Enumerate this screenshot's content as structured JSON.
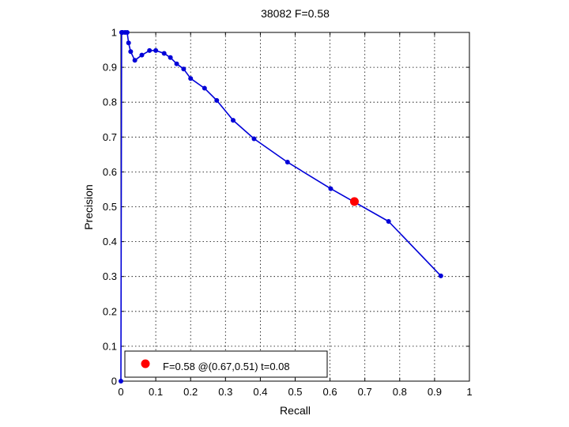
{
  "chart_data": {
    "type": "line",
    "title": "38082 F=0.58",
    "xlabel": "Recall",
    "ylabel": "Precision",
    "xlim": [
      0,
      1
    ],
    "ylim": [
      0,
      1
    ],
    "xticks": [
      "0",
      "0.1",
      "0.2",
      "0.3",
      "0.4",
      "0.5",
      "0.6",
      "0.7",
      "0.8",
      "0.9",
      "1"
    ],
    "yticks": [
      "0",
      "0.1",
      "0.2",
      "0.3",
      "0.4",
      "0.5",
      "0.6",
      "0.7",
      "0.8",
      "0.9",
      "1"
    ],
    "grid": true,
    "series": [
      {
        "color": "#0000d8",
        "marker": "dot",
        "x": [
          0,
          0.002,
          0.005,
          0.012,
          0.018,
          0.022,
          0.028,
          0.04,
          0.06,
          0.082,
          0.1,
          0.124,
          0.142,
          0.16,
          0.18,
          0.2,
          0.24,
          0.275,
          0.322,
          0.382,
          0.478,
          0.602,
          0.768,
          0.918
        ],
        "y": [
          0,
          1.0,
          1.0,
          1.0,
          1.0,
          0.97,
          0.945,
          0.92,
          0.935,
          0.948,
          0.948,
          0.94,
          0.928,
          0.91,
          0.895,
          0.868,
          0.84,
          0.805,
          0.748,
          0.695,
          0.628,
          0.552,
          0.458,
          0.302
        ]
      }
    ],
    "highlight_point": {
      "x": 0.67,
      "y": 0.515,
      "color": "#ff0000"
    },
    "legend": {
      "position": "bottom-left",
      "entries": [
        {
          "label": "F=0.58 @(0.67,0.51) t=0.08",
          "color": "#ff0000"
        }
      ]
    }
  }
}
